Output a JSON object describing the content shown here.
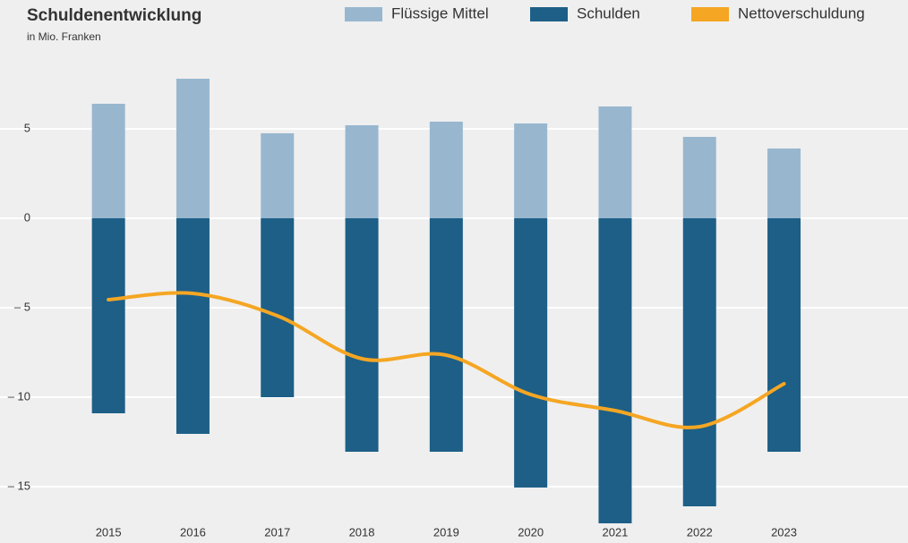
{
  "chart_data": {
    "type": "bar",
    "stacked": true,
    "title": "Schuldenentwicklung",
    "subtitle": "in Mio. Franken",
    "categories": [
      "2015",
      "2016",
      "2017",
      "2018",
      "2019",
      "2020",
      "2021",
      "2022",
      "2023"
    ],
    "series": [
      {
        "name": "Flüssige Mittel",
        "color": "#98b7cf",
        "values": [
          6.4,
          7.8,
          4.75,
          5.2,
          5.4,
          5.3,
          6.25,
          4.55,
          3.9
        ]
      },
      {
        "name": "Schulden",
        "color": "#1d5f87",
        "values": [
          -10.9,
          -12.05,
          -10,
          -13.05,
          -13.05,
          -15.05,
          -17.05,
          -16.1,
          -13.05
        ]
      },
      {
        "name": "Nettoverschuldung",
        "type": "line",
        "color": "#f5a623",
        "values": [
          -4.55,
          -4.2,
          -5.45,
          -7.85,
          -7.65,
          -9.85,
          -10.75,
          -11.65,
          -9.25
        ]
      }
    ],
    "ylim": [
      -17.2,
      9.2
    ],
    "yticks": [
      {
        "value": -15,
        "label": "– 15"
      },
      {
        "value": -10,
        "label": "– 10"
      },
      {
        "value": -5,
        "label": "– 5"
      },
      0,
      5
    ],
    "grid": true,
    "legend": "top"
  }
}
